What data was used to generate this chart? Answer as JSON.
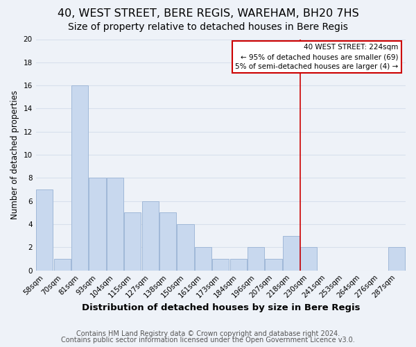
{
  "title": "40, WEST STREET, BERE REGIS, WAREHAM, BH20 7HS",
  "subtitle": "Size of property relative to detached houses in Bere Regis",
  "xlabel": "Distribution of detached houses by size in Bere Regis",
  "ylabel": "Number of detached properties",
  "bar_labels": [
    "58sqm",
    "70sqm",
    "81sqm",
    "93sqm",
    "104sqm",
    "115sqm",
    "127sqm",
    "138sqm",
    "150sqm",
    "161sqm",
    "173sqm",
    "184sqm",
    "196sqm",
    "207sqm",
    "218sqm",
    "230sqm",
    "241sqm",
    "253sqm",
    "264sqm",
    "276sqm",
    "287sqm"
  ],
  "bar_heights": [
    7,
    1,
    16,
    8,
    8,
    5,
    6,
    5,
    4,
    2,
    1,
    1,
    2,
    1,
    3,
    2,
    0,
    0,
    0,
    0,
    2
  ],
  "bar_color": "#c8d8ee",
  "bar_edge_color": "#a0b8d8",
  "ylim": [
    0,
    20
  ],
  "yticks": [
    0,
    2,
    4,
    6,
    8,
    10,
    12,
    14,
    16,
    18,
    20
  ],
  "vline_x": 14.5,
  "vline_color": "#cc0000",
  "annotation_title": "40 WEST STREET: 224sqm",
  "annotation_line1": "← 95% of detached houses are smaller (69)",
  "annotation_line2": "5% of semi-detached houses are larger (4) →",
  "annotation_box_color": "#ffffff",
  "annotation_box_edge": "#cc0000",
  "footer1": "Contains HM Land Registry data © Crown copyright and database right 2024.",
  "footer2": "Contains public sector information licensed under the Open Government Licence v3.0.",
  "background_color": "#eef2f8",
  "grid_color": "#d8e0ec",
  "title_fontsize": 11.5,
  "subtitle_fontsize": 10,
  "xlabel_fontsize": 9.5,
  "ylabel_fontsize": 8.5,
  "tick_fontsize": 7.5,
  "footer_fontsize": 7
}
